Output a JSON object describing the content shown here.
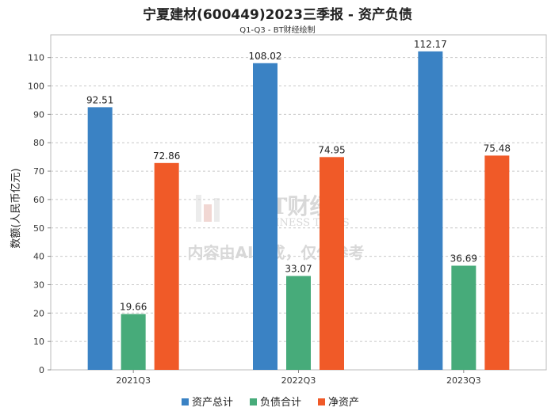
{
  "chart_data": {
    "type": "bar",
    "title": "宁夏建材(600449)2023三季报 - 资产负债",
    "subtitle": "Q1-Q3 - BT财经绘制",
    "xlabel": "",
    "ylabel": "数额(人民币亿元)",
    "categories": [
      "2021Q3",
      "2022Q3",
      "2023Q3"
    ],
    "series": [
      {
        "name": "资产总计",
        "values": [
          92.51,
          108.02,
          112.17
        ],
        "color": "#3a82c4"
      },
      {
        "name": "负债合计",
        "values": [
          19.66,
          33.07,
          36.69
        ],
        "color": "#47ab7a"
      },
      {
        "name": "净资产",
        "values": [
          72.86,
          74.95,
          75.48
        ],
        "color": "#f05a28"
      }
    ],
    "ylim": [
      0,
      118
    ],
    "yticks": [
      0,
      10,
      20,
      30,
      40,
      50,
      60,
      70,
      80,
      90,
      100,
      110
    ],
    "grid": true,
    "legend_position": "bottom-center"
  },
  "watermark": {
    "brand_cn": "BT财经",
    "brand_en": "BUSINESS TIMES",
    "notice": "内容由AI生成，仅供参考"
  }
}
